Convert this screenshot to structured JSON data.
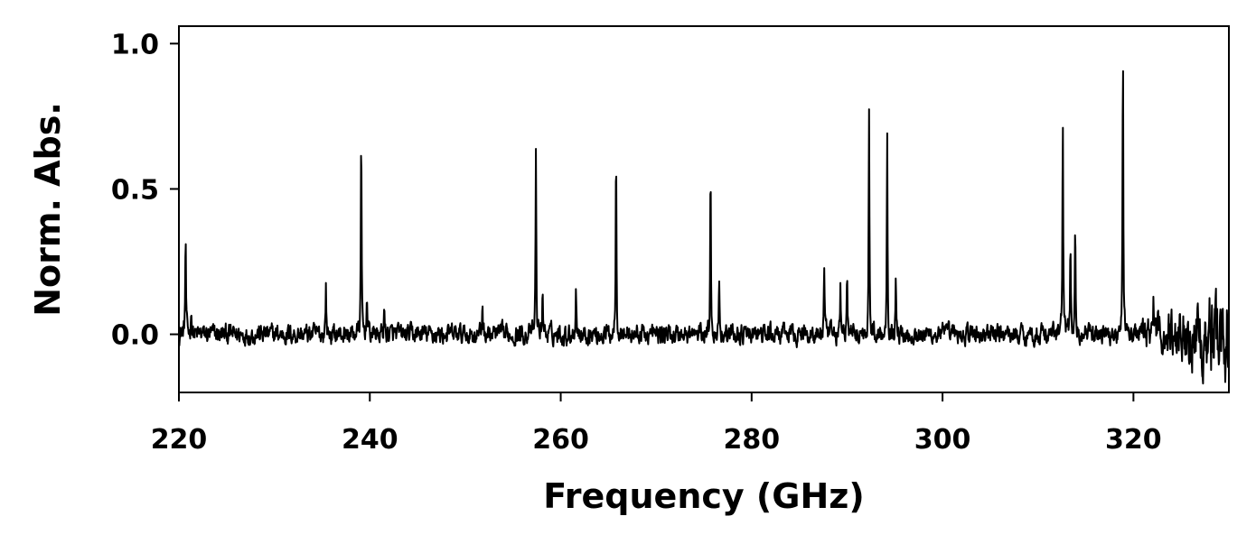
{
  "chart_data": {
    "type": "line",
    "title": "",
    "xlabel": "Frequency (GHz)",
    "ylabel": "Norm. Abs.",
    "xlim": [
      220,
      330
    ],
    "ylim": [
      -0.2,
      1.06
    ],
    "xticks": [
      220,
      240,
      260,
      280,
      300,
      320
    ],
    "xtick_labels": [
      "220",
      "240",
      "260",
      "280",
      "300",
      "320"
    ],
    "yticks": [
      0.0,
      0.5,
      1.0
    ],
    "ytick_labels": [
      "0.0",
      "0.5",
      "1.0"
    ],
    "grid": false,
    "line_color": "#000000",
    "baseline": 0.0,
    "noise_amplitude": 0.03,
    "series": [
      {
        "peaks": [
          {
            "x": 220.7,
            "y": 0.34
          },
          {
            "x": 221.3,
            "y": 0.1
          },
          {
            "x": 235.4,
            "y": 0.17
          },
          {
            "x": 239.1,
            "y": 0.68
          },
          {
            "x": 239.7,
            "y": 0.15
          },
          {
            "x": 241.5,
            "y": 0.1
          },
          {
            "x": 251.8,
            "y": 0.12
          },
          {
            "x": 257.4,
            "y": 0.63
          },
          {
            "x": 258.1,
            "y": 0.17
          },
          {
            "x": 261.6,
            "y": 0.19
          },
          {
            "x": 265.8,
            "y": 0.68
          },
          {
            "x": 275.7,
            "y": 0.58
          },
          {
            "x": 276.6,
            "y": 0.2
          },
          {
            "x": 287.6,
            "y": 0.23
          },
          {
            "x": 289.3,
            "y": 0.16
          },
          {
            "x": 290.0,
            "y": 0.2
          },
          {
            "x": 292.3,
            "y": 0.78
          },
          {
            "x": 294.2,
            "y": 0.7
          },
          {
            "x": 295.1,
            "y": 0.2
          },
          {
            "x": 312.6,
            "y": 0.79
          },
          {
            "x": 313.4,
            "y": 0.32
          },
          {
            "x": 313.9,
            "y": 0.36
          },
          {
            "x": 318.9,
            "y": 1.0
          },
          {
            "x": 322.1,
            "y": 0.17
          }
        ]
      }
    ]
  }
}
